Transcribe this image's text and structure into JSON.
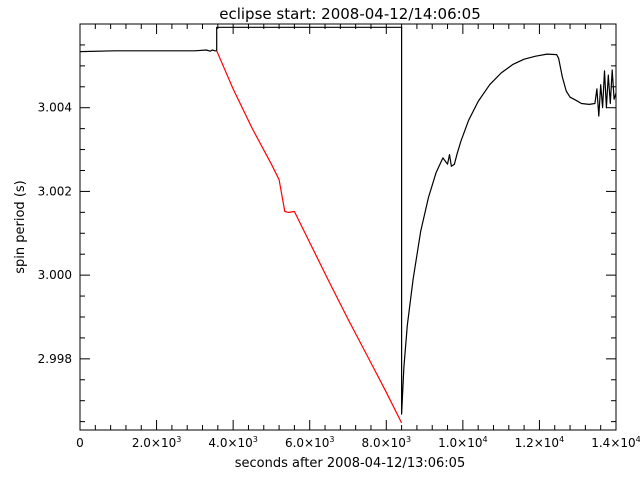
{
  "chart_data": {
    "type": "line",
    "title": "eclipse start: 2008-04-12/14:06:05",
    "xlabel": "seconds after 2008-04-12/13:06:05",
    "ylabel": "spin period (s)",
    "xlim": [
      0,
      14000
    ],
    "ylim": [
      2.9963,
      3.006
    ],
    "grid": false,
    "x_ticks": [
      {
        "value": 0,
        "mant": "0",
        "exp": ""
      },
      {
        "value": 2000,
        "mant": "2.0×10",
        "exp": "3"
      },
      {
        "value": 4000,
        "mant": "4.0×10",
        "exp": "3"
      },
      {
        "value": 6000,
        "mant": "6.0×10",
        "exp": "3"
      },
      {
        "value": 8000,
        "mant": "8.0×10",
        "exp": "3"
      },
      {
        "value": 10000,
        "mant": "1.0×10",
        "exp": "4"
      },
      {
        "value": 12000,
        "mant": "1.2×10",
        "exp": "4"
      },
      {
        "value": 14000,
        "mant": "1.4×10",
        "exp": "4"
      }
    ],
    "y_ticks": [
      {
        "value": 2.998,
        "label": "2.998"
      },
      {
        "value": 3.0,
        "label": "3.000"
      },
      {
        "value": 3.002,
        "label": "3.002"
      },
      {
        "value": 3.004,
        "label": "3.004"
      }
    ],
    "series": [
      {
        "color": "#000000",
        "x": [
          0,
          900,
          1200,
          1800,
          2500,
          3000,
          3300,
          3400,
          3450,
          3520,
          3570,
          3570,
          8400,
          8400,
          8460,
          8550,
          8700,
          8900,
          9100,
          9300,
          9480,
          9600,
          9650,
          9700,
          9780,
          9850,
          9950,
          10150,
          10400,
          10700,
          11000,
          11300,
          11600,
          11900,
          12200,
          12450,
          12500,
          12600,
          12700,
          12800,
          12950,
          13100,
          13300,
          13450,
          13500,
          13550,
          13600,
          13650,
          13700,
          13750,
          13800,
          13850,
          13900,
          13950,
          14000
        ],
        "y": [
          3.00534,
          3.00536,
          3.00536,
          3.00536,
          3.00536,
          3.00536,
          3.00538,
          3.00535,
          3.00538,
          3.00536,
          3.00536,
          3.00592,
          3.00592,
          2.99668,
          2.9978,
          2.9988,
          2.9999,
          3.00105,
          3.00185,
          3.00245,
          3.0028,
          3.00265,
          3.00288,
          3.0026,
          3.00265,
          3.0029,
          3.0032,
          3.0037,
          3.00415,
          3.00455,
          3.00483,
          3.00503,
          3.00516,
          3.00523,
          3.00528,
          3.00527,
          3.00518,
          3.00473,
          3.0044,
          3.00425,
          3.00418,
          3.0041,
          3.00408,
          3.0041,
          3.00445,
          3.0038,
          3.00455,
          3.004,
          3.00488,
          3.004,
          3.00478,
          3.0041,
          3.0049,
          3.0042,
          3.00435
        ]
      },
      {
        "color": "#ff0000",
        "x": [
          3570,
          4000,
          4500,
          5000,
          5200,
          5350,
          5450,
          5600,
          6000,
          6500,
          7000,
          7500,
          8000,
          8400
        ],
        "y": [
          3.00536,
          3.00445,
          3.0035,
          3.00265,
          3.00228,
          3.00152,
          3.0015,
          3.00152,
          3.00078,
          2.99985,
          2.99895,
          2.99808,
          2.9972,
          2.99647
        ]
      }
    ]
  }
}
